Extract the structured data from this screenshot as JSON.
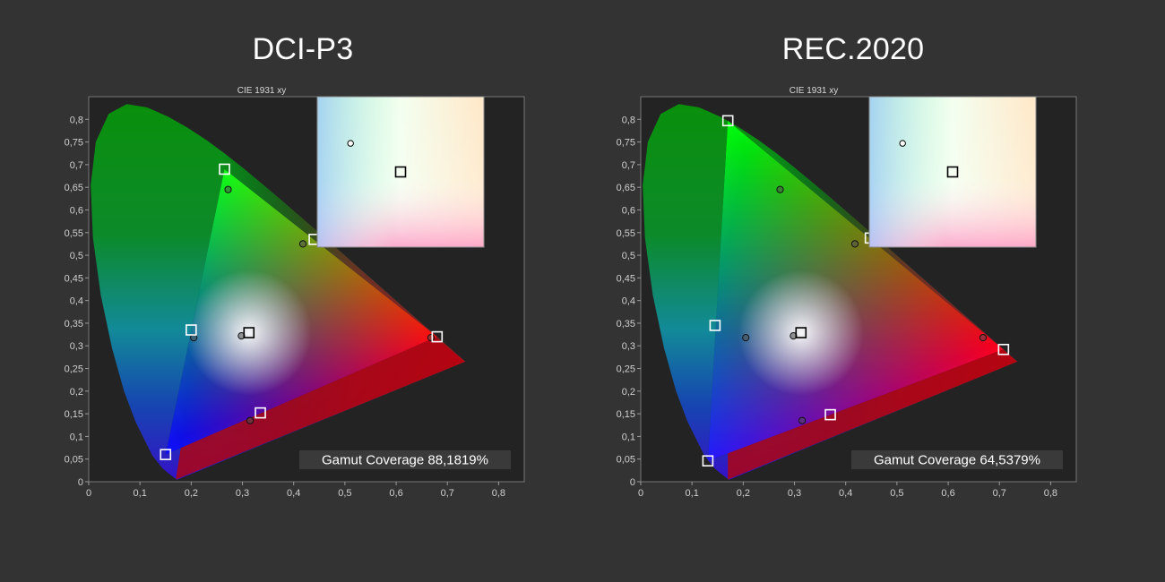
{
  "panels": [
    {
      "heading": "DCI-P3",
      "plot_title": "CIE 1931 xy",
      "coverage_label": "Gamut Coverage 88,1819%"
    },
    {
      "heading": "REC.2020",
      "plot_title": "CIE 1931 xy",
      "coverage_label": "Gamut Coverage 64,5379%"
    }
  ],
  "chart_data": [
    {
      "type": "scatter",
      "title": "CIE 1931 xy",
      "xlim": [
        0,
        0.85
      ],
      "ylim": [
        0,
        0.85
      ],
      "x_ticks": [
        "0",
        "0,1",
        "0,2",
        "0,3",
        "0,4",
        "0,5",
        "0,6",
        "0,7",
        "0,8"
      ],
      "y_ticks": [
        "0",
        "0,05",
        "0,1",
        "0,15",
        "0,2",
        "0,25",
        "0,3",
        "0,35",
        "0,4",
        "0,45",
        "0,5",
        "0,55",
        "0,6",
        "0,65",
        "0,7",
        "0,75",
        "0,8"
      ],
      "gamut_triangle": [
        [
          0.68,
          0.32
        ],
        [
          0.265,
          0.69
        ],
        [
          0.15,
          0.06
        ]
      ],
      "reference_triangle": [
        [
          0.735,
          0.265
        ],
        [
          0.265,
          0.69
        ],
        [
          0.17,
          0.005
        ]
      ],
      "series": [
        {
          "marker": "square",
          "points": [
            [
              0.68,
              0.32
            ],
            [
              0.265,
              0.69
            ],
            [
              0.15,
              0.06
            ],
            [
              0.44,
              0.535
            ],
            [
              0.2,
              0.335
            ],
            [
              0.335,
              0.152
            ],
            [
              0.3127,
              0.329
            ]
          ]
        },
        {
          "marker": "circle",
          "points": [
            [
              0.272,
              0.645
            ],
            [
              0.418,
              0.525
            ],
            [
              0.205,
              0.318
            ],
            [
              0.298,
              0.322
            ],
            [
              0.315,
              0.135
            ],
            [
              0.668,
              0.318
            ]
          ]
        }
      ],
      "inset": {
        "square": [
          0.5,
          0.5
        ],
        "circle": [
          0.2,
          0.31
        ]
      },
      "annotation": "Gamut Coverage 88,1819%"
    },
    {
      "type": "scatter",
      "title": "CIE 1931 xy",
      "xlim": [
        0,
        0.85
      ],
      "ylim": [
        0,
        0.85
      ],
      "x_ticks": [
        "0",
        "0,1",
        "0,2",
        "0,3",
        "0,4",
        "0,5",
        "0,6",
        "0,7",
        "0,8"
      ],
      "y_ticks": [
        "0",
        "0,05",
        "0,1",
        "0,15",
        "0,2",
        "0,25",
        "0,3",
        "0,35",
        "0,4",
        "0,45",
        "0,5",
        "0,55",
        "0,6",
        "0,65",
        "0,7",
        "0,75",
        "0,8"
      ],
      "gamut_triangle": [
        [
          0.708,
          0.292
        ],
        [
          0.17,
          0.797
        ],
        [
          0.131,
          0.046
        ]
      ],
      "reference_triangle": [
        [
          0.735,
          0.265
        ],
        [
          0.17,
          0.797
        ],
        [
          0.17,
          0.005
        ]
      ],
      "series": [
        {
          "marker": "square",
          "points": [
            [
              0.708,
              0.292
            ],
            [
              0.17,
              0.797
            ],
            [
              0.131,
              0.046
            ],
            [
              0.448,
              0.538
            ],
            [
              0.145,
              0.345
            ],
            [
              0.37,
              0.148
            ],
            [
              0.3127,
              0.329
            ]
          ]
        },
        {
          "marker": "circle",
          "points": [
            [
              0.272,
              0.645
            ],
            [
              0.418,
              0.525
            ],
            [
              0.205,
              0.318
            ],
            [
              0.298,
              0.322
            ],
            [
              0.315,
              0.135
            ],
            [
              0.668,
              0.318
            ]
          ]
        }
      ],
      "inset": {
        "square": [
          0.5,
          0.5
        ],
        "circle": [
          0.2,
          0.31
        ]
      },
      "annotation": "Gamut Coverage 64,5379%"
    }
  ]
}
